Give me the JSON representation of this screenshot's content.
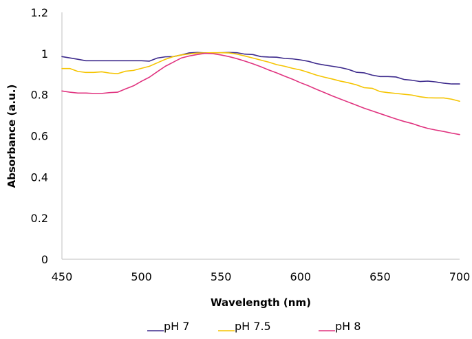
{
  "chart_data": {
    "type": "line",
    "title": "",
    "xlabel": "Wavelength (nm)",
    "ylabel": "Absorbance (a.u.)",
    "xlim": [
      450,
      700
    ],
    "ylim": [
      0,
      1.2
    ],
    "x_ticks": [
      "450",
      "500",
      "550",
      "600",
      "650",
      "700"
    ],
    "y_ticks": [
      "0",
      "0.2",
      "0.4",
      "0.6",
      "0.8",
      "1",
      "1.2"
    ],
    "grid": false,
    "legend_position": "bottom",
    "series": [
      {
        "name": "pH 7",
        "color": "#3d2a8c",
        "points": [
          [
            450,
            0.985
          ],
          [
            460,
            0.972
          ],
          [
            465,
            0.965
          ],
          [
            470,
            0.965
          ],
          [
            480,
            0.965
          ],
          [
            490,
            0.965
          ],
          [
            500,
            0.965
          ],
          [
            505,
            0.963
          ],
          [
            510,
            0.978
          ],
          [
            515,
            0.984
          ],
          [
            520,
            0.985
          ],
          [
            525,
            0.993
          ],
          [
            530,
            1.003
          ],
          [
            535,
            1.005
          ],
          [
            540,
            1.003
          ],
          [
            545,
            1.003
          ],
          [
            550,
            1.004
          ],
          [
            555,
            1.005
          ],
          [
            560,
            1.004
          ],
          [
            565,
            0.997
          ],
          [
            570,
            0.995
          ],
          [
            575,
            0.985
          ],
          [
            580,
            0.983
          ],
          [
            585,
            0.982
          ],
          [
            590,
            0.976
          ],
          [
            595,
            0.974
          ],
          [
            600,
            0.969
          ],
          [
            605,
            0.962
          ],
          [
            610,
            0.951
          ],
          [
            615,
            0.944
          ],
          [
            620,
            0.938
          ],
          [
            625,
            0.932
          ],
          [
            630,
            0.923
          ],
          [
            635,
            0.909
          ],
          [
            640,
            0.906
          ],
          [
            645,
            0.895
          ],
          [
            650,
            0.888
          ],
          [
            655,
            0.888
          ],
          [
            660,
            0.886
          ],
          [
            665,
            0.874
          ],
          [
            670,
            0.87
          ],
          [
            675,
            0.864
          ],
          [
            680,
            0.866
          ],
          [
            685,
            0.862
          ],
          [
            690,
            0.856
          ],
          [
            695,
            0.852
          ],
          [
            700,
            0.852
          ]
        ]
      },
      {
        "name": "pH 7.5",
        "color": "#f5c400",
        "points": [
          [
            450,
            0.927
          ],
          [
            455,
            0.927
          ],
          [
            460,
            0.913
          ],
          [
            465,
            0.908
          ],
          [
            470,
            0.908
          ],
          [
            475,
            0.911
          ],
          [
            480,
            0.905
          ],
          [
            485,
            0.902
          ],
          [
            490,
            0.914
          ],
          [
            495,
            0.918
          ],
          [
            500,
            0.928
          ],
          [
            505,
            0.938
          ],
          [
            510,
            0.955
          ],
          [
            515,
            0.972
          ],
          [
            520,
            0.985
          ],
          [
            525,
            0.993
          ],
          [
            530,
            0.998
          ],
          [
            535,
            1.002
          ],
          [
            540,
            1.003
          ],
          [
            545,
            1.004
          ],
          [
            550,
            1.004
          ],
          [
            555,
            1.003
          ],
          [
            560,
            0.997
          ],
          [
            565,
            0.988
          ],
          [
            570,
            0.978
          ],
          [
            575,
            0.968
          ],
          [
            580,
            0.958
          ],
          [
            585,
            0.946
          ],
          [
            590,
            0.938
          ],
          [
            595,
            0.928
          ],
          [
            600,
            0.92
          ],
          [
            605,
            0.908
          ],
          [
            610,
            0.895
          ],
          [
            615,
            0.885
          ],
          [
            620,
            0.876
          ],
          [
            625,
            0.866
          ],
          [
            630,
            0.858
          ],
          [
            635,
            0.848
          ],
          [
            640,
            0.834
          ],
          [
            645,
            0.831
          ],
          [
            650,
            0.815
          ],
          [
            655,
            0.81
          ],
          [
            660,
            0.806
          ],
          [
            665,
            0.802
          ],
          [
            670,
            0.798
          ],
          [
            675,
            0.79
          ],
          [
            680,
            0.785
          ],
          [
            685,
            0.784
          ],
          [
            690,
            0.784
          ],
          [
            695,
            0.778
          ],
          [
            700,
            0.768
          ]
        ]
      },
      {
        "name": "pH 8",
        "color": "#e0337f",
        "points": [
          [
            450,
            0.818
          ],
          [
            455,
            0.812
          ],
          [
            460,
            0.808
          ],
          [
            465,
            0.808
          ],
          [
            470,
            0.806
          ],
          [
            475,
            0.806
          ],
          [
            480,
            0.81
          ],
          [
            485,
            0.812
          ],
          [
            490,
            0.828
          ],
          [
            495,
            0.843
          ],
          [
            500,
            0.865
          ],
          [
            505,
            0.885
          ],
          [
            510,
            0.912
          ],
          [
            515,
            0.938
          ],
          [
            520,
            0.958
          ],
          [
            525,
            0.978
          ],
          [
            530,
            0.988
          ],
          [
            535,
            0.995
          ],
          [
            540,
            1.001
          ],
          [
            545,
            0.999
          ],
          [
            550,
            0.993
          ],
          [
            555,
            0.985
          ],
          [
            560,
            0.975
          ],
          [
            565,
            0.963
          ],
          [
            570,
            0.95
          ],
          [
            575,
            0.936
          ],
          [
            580,
            0.92
          ],
          [
            585,
            0.906
          ],
          [
            590,
            0.89
          ],
          [
            595,
            0.875
          ],
          [
            600,
            0.858
          ],
          [
            605,
            0.843
          ],
          [
            610,
            0.826
          ],
          [
            615,
            0.81
          ],
          [
            620,
            0.794
          ],
          [
            625,
            0.779
          ],
          [
            630,
            0.764
          ],
          [
            635,
            0.749
          ],
          [
            640,
            0.734
          ],
          [
            645,
            0.721
          ],
          [
            650,
            0.708
          ],
          [
            655,
            0.695
          ],
          [
            660,
            0.682
          ],
          [
            665,
            0.67
          ],
          [
            670,
            0.66
          ],
          [
            675,
            0.647
          ],
          [
            680,
            0.636
          ],
          [
            685,
            0.628
          ],
          [
            690,
            0.621
          ],
          [
            695,
            0.613
          ],
          [
            700,
            0.606
          ]
        ]
      }
    ]
  }
}
